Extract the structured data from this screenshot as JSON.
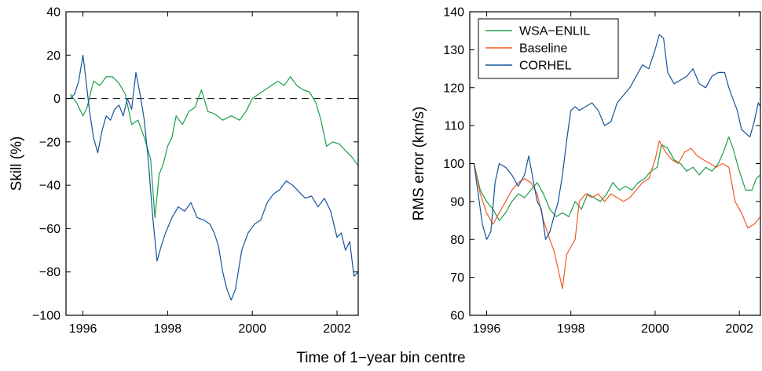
{
  "figure": {
    "shared_xlabel": "Time of 1−year bin centre"
  },
  "chart_data": [
    {
      "type": "line",
      "title": "",
      "xlabel": "",
      "ylabel": "Skill (%)",
      "xlim": [
        1995.6,
        2002.5
      ],
      "ylim": [
        -100,
        40
      ],
      "xticks": [
        1996,
        1998,
        2000,
        2002
      ],
      "yticks": [
        -100,
        -80,
        -60,
        -40,
        -20,
        0,
        20,
        40
      ],
      "ytick_labels": [
        "−100",
        "−80",
        "−60",
        "−40",
        "−20",
        "0",
        "20",
        "40"
      ],
      "reference_line": {
        "y": 0,
        "style": "dashed"
      },
      "legend": "none",
      "series": [
        {
          "color": "#1a9e48",
          "x": [
            1995.7,
            1995.85,
            1996.0,
            1996.1,
            1996.25,
            1996.4,
            1996.55,
            1996.7,
            1996.85,
            1997.0,
            1997.15,
            1997.3,
            1997.45,
            1997.6,
            1997.7,
            1997.8,
            1997.9,
            1998.0,
            1998.1,
            1998.2,
            1998.35,
            1998.5,
            1998.65,
            1998.8,
            1998.95,
            1999.1,
            1999.3,
            1999.5,
            1999.7,
            1999.85,
            2000.0,
            2000.15,
            2000.3,
            2000.45,
            2000.6,
            2000.75,
            2000.9,
            2001.05,
            2001.2,
            2001.35,
            2001.5,
            2001.62,
            2001.75,
            2001.9,
            2002.05,
            2002.2,
            2002.35,
            2002.5
          ],
          "values": [
            2,
            -2,
            -8,
            -4,
            8,
            6,
            10,
            10,
            7,
            2,
            -12,
            -10,
            -18,
            -28,
            -55,
            -35,
            -30,
            -22,
            -18,
            -8,
            -12,
            -6,
            -4,
            4,
            -6,
            -7,
            -10,
            -8,
            -10,
            -6,
            0,
            2,
            4,
            6,
            8,
            6,
            10,
            6,
            4,
            3,
            -2,
            -10,
            -22,
            -20,
            -21,
            -24,
            -27,
            -31
          ]
        },
        {
          "color": "#14539e",
          "x": [
            1995.7,
            1995.8,
            1995.9,
            1996.0,
            1996.05,
            1996.15,
            1996.25,
            1996.35,
            1996.45,
            1996.55,
            1996.65,
            1996.75,
            1996.85,
            1996.95,
            1997.05,
            1997.15,
            1997.25,
            1997.35,
            1997.45,
            1997.55,
            1997.65,
            1997.75,
            1997.85,
            1997.95,
            1998.1,
            1998.25,
            1998.4,
            1998.55,
            1998.7,
            1998.85,
            1999.0,
            1999.1,
            1999.2,
            1999.3,
            1999.4,
            1999.5,
            1999.6,
            1999.75,
            1999.9,
            2000.05,
            2000.2,
            2000.35,
            2000.5,
            2000.65,
            2000.8,
            2000.95,
            2001.1,
            2001.25,
            2001.4,
            2001.55,
            2001.7,
            2001.85,
            2002.0,
            2002.1,
            2002.2,
            2002.3,
            2002.4,
            2002.5
          ],
          "values": [
            0,
            2,
            8,
            20,
            12,
            -5,
            -18,
            -25,
            -15,
            -8,
            -10,
            -5,
            -3,
            -8,
            0,
            -5,
            12,
            2,
            -10,
            -30,
            -55,
            -75,
            -68,
            -62,
            -55,
            -50,
            -52,
            -48,
            -55,
            -56,
            -58,
            -62,
            -68,
            -80,
            -88,
            -93,
            -88,
            -70,
            -62,
            -58,
            -56,
            -48,
            -44,
            -42,
            -38,
            -40,
            -43,
            -46,
            -45,
            -50,
            -46,
            -52,
            -64,
            -62,
            -70,
            -66,
            -82,
            -80
          ]
        }
      ]
    },
    {
      "type": "line",
      "title": "",
      "xlabel": "",
      "ylabel": "RMS error (km/s)",
      "xlim": [
        1995.6,
        2002.5
      ],
      "ylim": [
        60,
        140
      ],
      "xticks": [
        1996,
        1998,
        2000,
        2002
      ],
      "yticks": [
        60,
        70,
        80,
        90,
        100,
        110,
        120,
        130,
        140
      ],
      "legend": "top-left",
      "series": [
        {
          "name": "WSA−ENLIL",
          "color": "#1a9e48",
          "x": [
            1995.7,
            1995.85,
            1996.0,
            1996.15,
            1996.3,
            1996.45,
            1996.6,
            1996.75,
            1996.9,
            1997.05,
            1997.2,
            1997.35,
            1997.5,
            1997.65,
            1997.8,
            1997.95,
            1998.1,
            1998.25,
            1998.4,
            1998.55,
            1998.7,
            1998.85,
            1999.0,
            1999.15,
            1999.3,
            1999.45,
            1999.6,
            1999.75,
            1999.9,
            2000.05,
            2000.15,
            2000.3,
            2000.45,
            2000.6,
            2000.75,
            2000.9,
            2001.05,
            2001.2,
            2001.35,
            2001.5,
            2001.62,
            2001.75,
            2001.85,
            2002.0,
            2002.15,
            2002.3,
            2002.4,
            2002.5
          ],
          "values": [
            100,
            93,
            90,
            88,
            85,
            87,
            90,
            92,
            91,
            93,
            95,
            92,
            88,
            86,
            87,
            86,
            90,
            88,
            92,
            91,
            90,
            92,
            95,
            93,
            94,
            93,
            95,
            96,
            98,
            99,
            105,
            104,
            101,
            100,
            98,
            99,
            97,
            99,
            98,
            100,
            103,
            107,
            104,
            98,
            93,
            93,
            96,
            97
          ]
        },
        {
          "name": "Baseline",
          "color": "#f05a23",
          "x": [
            1995.7,
            1995.85,
            1996.0,
            1996.15,
            1996.3,
            1996.45,
            1996.6,
            1996.75,
            1996.9,
            1997.05,
            1997.2,
            1997.35,
            1997.5,
            1997.6,
            1997.7,
            1997.8,
            1997.9,
            1998.0,
            1998.1,
            1998.2,
            1998.35,
            1998.5,
            1998.65,
            1998.8,
            1998.95,
            1999.1,
            1999.25,
            1999.4,
            1999.55,
            1999.7,
            1999.85,
            2000.0,
            2000.1,
            2000.25,
            2000.4,
            2000.55,
            2000.7,
            2000.85,
            2001.0,
            2001.15,
            2001.3,
            2001.45,
            2001.6,
            2001.75,
            2001.9,
            2002.05,
            2002.2,
            2002.35,
            2002.5
          ],
          "values": [
            100,
            92,
            87,
            84,
            87,
            90,
            93,
            95,
            96,
            95,
            92,
            85,
            80,
            77,
            72,
            67,
            76,
            78,
            80,
            90,
            92,
            91,
            92,
            90,
            92,
            91,
            90,
            91,
            93,
            95,
            96,
            101,
            106,
            103,
            101,
            100,
            103,
            104,
            102,
            101,
            100,
            99,
            100,
            99,
            90,
            87,
            83,
            84,
            86
          ]
        },
        {
          "name": "CORHEL",
          "color": "#14539e",
          "x": [
            1995.7,
            1995.8,
            1995.9,
            1996.0,
            1996.1,
            1996.2,
            1996.3,
            1996.45,
            1996.6,
            1996.75,
            1996.9,
            1997.0,
            1997.1,
            1997.2,
            1997.3,
            1997.4,
            1997.5,
            1997.6,
            1997.7,
            1997.8,
            1997.9,
            1998.0,
            1998.1,
            1998.2,
            1998.35,
            1998.5,
            1998.65,
            1998.8,
            1998.95,
            1999.1,
            1999.25,
            1999.4,
            1999.55,
            1999.7,
            1999.85,
            2000.0,
            2000.1,
            2000.2,
            2000.3,
            2000.45,
            2000.6,
            2000.75,
            2000.9,
            2001.05,
            2001.2,
            2001.35,
            2001.5,
            2001.65,
            2001.75,
            2001.85,
            2001.95,
            2002.05,
            2002.15,
            2002.25,
            2002.35,
            2002.45,
            2002.5
          ],
          "values": [
            100,
            92,
            84,
            80,
            82,
            95,
            100,
            99,
            97,
            94,
            97,
            102,
            96,
            90,
            88,
            80,
            82,
            86,
            90,
            97,
            106,
            114,
            115,
            114,
            115,
            116,
            114,
            110,
            111,
            116,
            118,
            120,
            123,
            126,
            125,
            130,
            134,
            133,
            124,
            121,
            122,
            123,
            125,
            121,
            120,
            123,
            124,
            124,
            120,
            117,
            114,
            109,
            108,
            107,
            111,
            116,
            115
          ]
        }
      ]
    }
  ]
}
